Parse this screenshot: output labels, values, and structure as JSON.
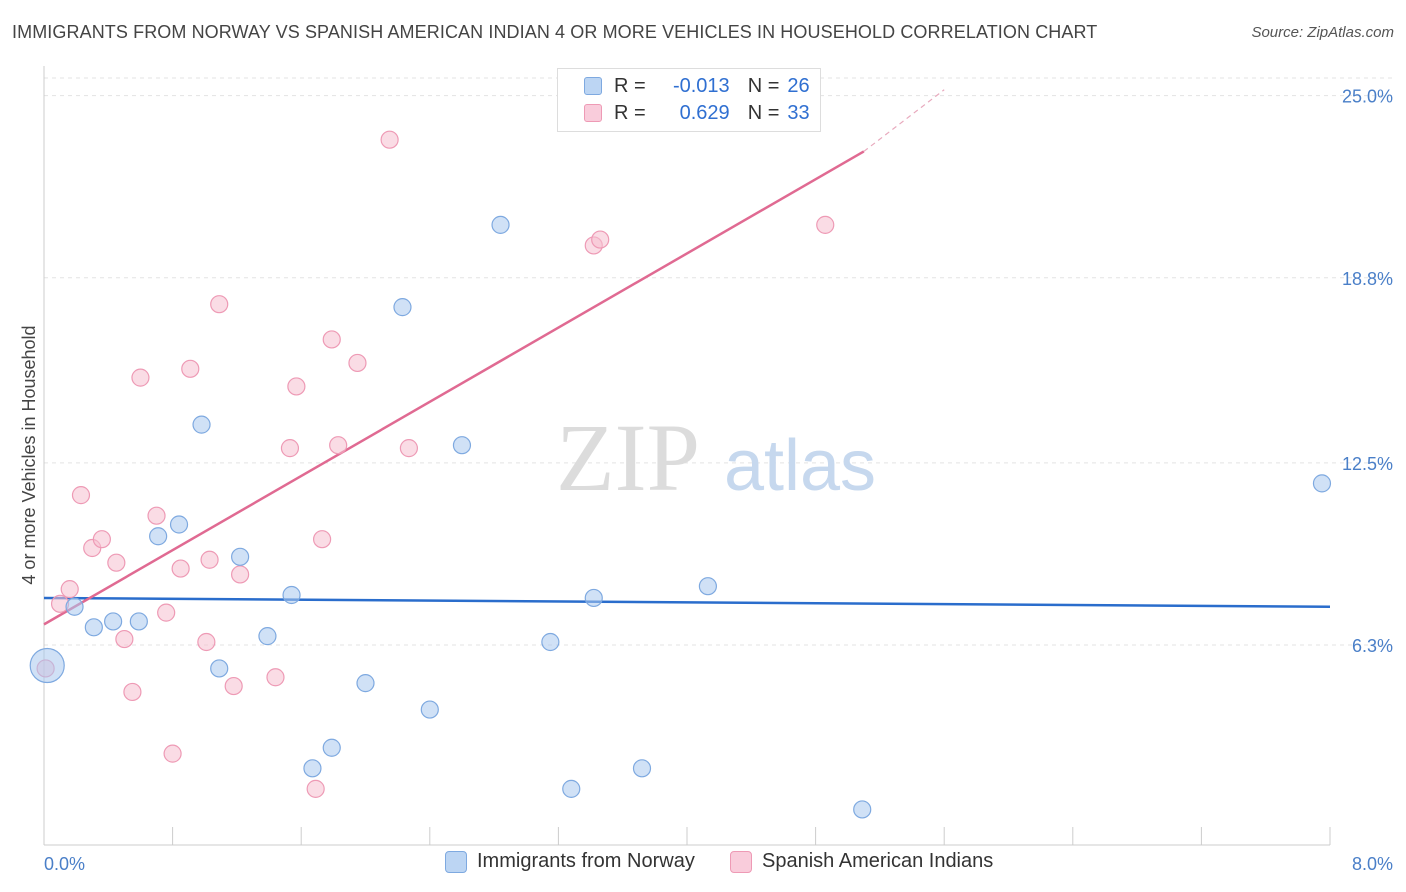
{
  "header": {
    "title": "IMMIGRANTS FROM NORWAY VS SPANISH AMERICAN INDIAN 4 OR MORE VEHICLES IN HOUSEHOLD CORRELATION CHART",
    "source": "Source: ZipAtlas.com"
  },
  "legend": {
    "rows": [
      {
        "r_label": "R =",
        "r_value": "-0.013",
        "n_label": "N =",
        "n_value": "26"
      },
      {
        "r_label": "R =",
        "r_value": "0.629",
        "n_label": "N =",
        "n_value": "33"
      }
    ]
  },
  "watermark": {
    "part1": "ZIP",
    "part2": "atlas"
  },
  "chart_data": {
    "type": "scatter",
    "title": "IMMIGRANTS FROM NORWAY VS SPANISH AMERICAN INDIAN 4 OR MORE VEHICLES IN HOUSEHOLD CORRELATION CHART",
    "xlabel": "",
    "ylabel": "4 or more Vehicles in Household",
    "xlim": [
      0.0,
      8.0
    ],
    "ylim": [
      0.0,
      25.6
    ],
    "x_tick_labels": [
      "0.0%",
      "8.0%"
    ],
    "y_ticks": [
      6.3,
      12.5,
      18.8,
      25.0
    ],
    "y_tick_labels": [
      "6.3%",
      "12.5%",
      "18.8%",
      "25.0%"
    ],
    "grid": true,
    "legend_position": "bottom",
    "series": [
      {
        "name": "Immigrants from Norway",
        "color": "#a9c8ef",
        "edge": "#7ea9e0",
        "line_color": "#2a6dcc",
        "trend": {
          "x": [
            0.0,
            8.0
          ],
          "y": [
            7.9,
            7.6
          ]
        },
        "points": [
          {
            "x": 0.02,
            "y": 5.6,
            "big": true
          },
          {
            "x": 0.19,
            "y": 7.6
          },
          {
            "x": 0.31,
            "y": 6.9
          },
          {
            "x": 0.43,
            "y": 7.1
          },
          {
            "x": 0.59,
            "y": 7.1
          },
          {
            "x": 0.71,
            "y": 10.0
          },
          {
            "x": 0.84,
            "y": 10.4
          },
          {
            "x": 0.98,
            "y": 13.8
          },
          {
            "x": 1.09,
            "y": 5.5
          },
          {
            "x": 1.22,
            "y": 9.3
          },
          {
            "x": 1.39,
            "y": 6.6
          },
          {
            "x": 1.54,
            "y": 8.0
          },
          {
            "x": 1.67,
            "y": 2.1
          },
          {
            "x": 1.79,
            "y": 2.8
          },
          {
            "x": 2.0,
            "y": 5.0
          },
          {
            "x": 2.23,
            "y": 17.8
          },
          {
            "x": 2.4,
            "y": 4.1
          },
          {
            "x": 2.6,
            "y": 13.1
          },
          {
            "x": 2.84,
            "y": 20.6
          },
          {
            "x": 3.15,
            "y": 6.4
          },
          {
            "x": 3.28,
            "y": 1.4
          },
          {
            "x": 3.42,
            "y": 7.9
          },
          {
            "x": 3.72,
            "y": 2.1
          },
          {
            "x": 4.13,
            "y": 8.3
          },
          {
            "x": 5.09,
            "y": 0.7
          },
          {
            "x": 7.95,
            "y": 11.8
          }
        ]
      },
      {
        "name": "Spanish American Indians",
        "color": "#f6bfd0",
        "edge": "#ee9ab5",
        "line_color": "#e06a92",
        "trend": {
          "x": [
            0.0,
            5.1
          ],
          "y": [
            7.0,
            23.1
          ]
        },
        "trend_dashed": {
          "x": [
            5.1,
            5.6
          ],
          "y": [
            23.1,
            25.2
          ]
        },
        "points": [
          {
            "x": 0.01,
            "y": 5.5
          },
          {
            "x": 0.1,
            "y": 7.7
          },
          {
            "x": 0.16,
            "y": 8.2
          },
          {
            "x": 0.23,
            "y": 11.4
          },
          {
            "x": 0.3,
            "y": 9.6
          },
          {
            "x": 0.36,
            "y": 9.9
          },
          {
            "x": 0.45,
            "y": 9.1
          },
          {
            "x": 0.5,
            "y": 6.5
          },
          {
            "x": 0.55,
            "y": 4.7
          },
          {
            "x": 0.6,
            "y": 15.4
          },
          {
            "x": 0.7,
            "y": 10.7
          },
          {
            "x": 0.76,
            "y": 7.4
          },
          {
            "x": 0.8,
            "y": 2.6
          },
          {
            "x": 0.85,
            "y": 8.9
          },
          {
            "x": 0.91,
            "y": 15.7
          },
          {
            "x": 1.01,
            "y": 6.4
          },
          {
            "x": 1.03,
            "y": 9.2
          },
          {
            "x": 1.09,
            "y": 17.9
          },
          {
            "x": 1.18,
            "y": 4.9
          },
          {
            "x": 1.22,
            "y": 8.7
          },
          {
            "x": 1.44,
            "y": 5.2
          },
          {
            "x": 1.53,
            "y": 13.0
          },
          {
            "x": 1.57,
            "y": 15.1
          },
          {
            "x": 1.69,
            "y": 1.4
          },
          {
            "x": 1.73,
            "y": 9.9
          },
          {
            "x": 1.79,
            "y": 16.7
          },
          {
            "x": 1.83,
            "y": 13.1
          },
          {
            "x": 1.95,
            "y": 15.9
          },
          {
            "x": 2.15,
            "y": 23.5
          },
          {
            "x": 2.27,
            "y": 13.0
          },
          {
            "x": 3.42,
            "y": 19.9
          },
          {
            "x": 3.46,
            "y": 20.1
          },
          {
            "x": 4.86,
            "y": 20.6
          }
        ]
      }
    ]
  }
}
